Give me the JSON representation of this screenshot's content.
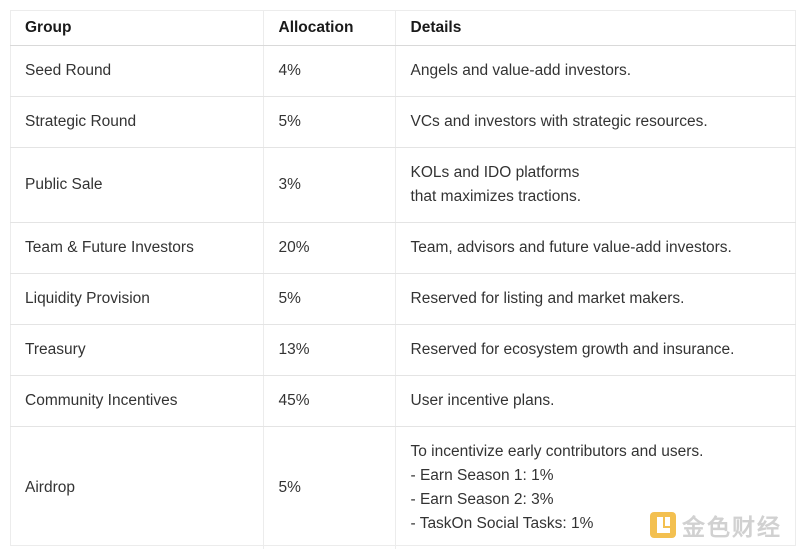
{
  "table": {
    "headers": [
      "Group",
      "Allocation",
      "Details"
    ],
    "rows": [
      {
        "group": "Seed Round",
        "allocation": "4%",
        "details": [
          "Angels and value-add investors."
        ]
      },
      {
        "group": "Strategic Round",
        "allocation": "5%",
        "details": [
          "VCs and investors with strategic resources."
        ]
      },
      {
        "group": "Public Sale",
        "allocation": "3%",
        "details": [
          "KOLs and IDO platforms",
          "that maximizes tractions."
        ]
      },
      {
        "group": "Team & Future Investors",
        "allocation": "20%",
        "details": [
          "Team, advisors and future value-add investors."
        ]
      },
      {
        "group": "Liquidity Provision",
        "allocation": "5%",
        "details": [
          "Reserved for listing and market makers."
        ]
      },
      {
        "group": "Treasury",
        "allocation": "13%",
        "details": [
          "Reserved for ecosystem growth and insurance."
        ]
      },
      {
        "group": "Community Incentives",
        "allocation": "45%",
        "details": [
          "User incentive plans."
        ]
      },
      {
        "group": "Airdrop",
        "allocation": "5%",
        "details": [
          "To incentivize early contributors and users.",
          "- Earn Season 1: 1%",
          "- Earn Season 2: 3%",
          "- TaskOn Social Tasks: 1%"
        ]
      }
    ]
  },
  "watermark": {
    "text": "金色财经",
    "logo_icon": "jinse-logo-icon",
    "logo_color": "#f2b632"
  }
}
